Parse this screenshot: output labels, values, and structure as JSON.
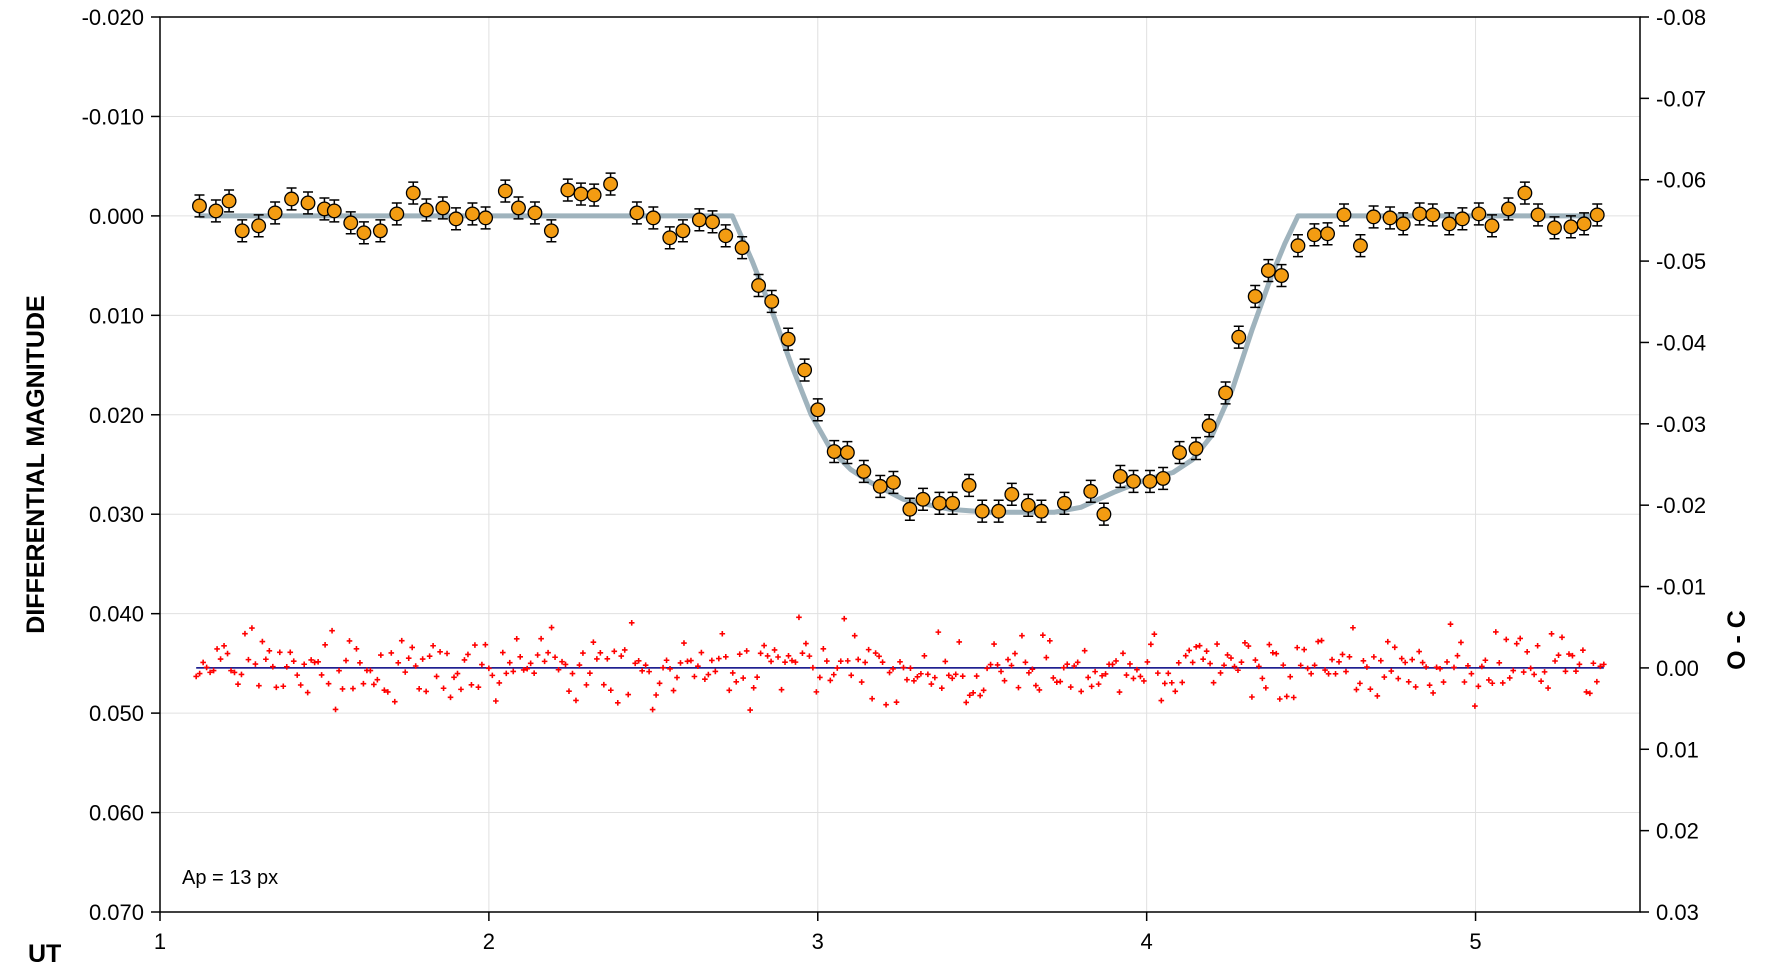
{
  "chart_data": {
    "type": "scatter",
    "xlabel": "UT",
    "ylabel": "DIFFERENTIAL MAGNITUDE",
    "y2label": "O - C",
    "annotation": "Ap = 13 px",
    "xlim": [
      1,
      5.5
    ],
    "ylim": [
      -0.02,
      0.07
    ],
    "y_inverted": true,
    "y2lim": [
      -0.08,
      0.03
    ],
    "y2_inverted": true,
    "grid": true,
    "x_ticks": [
      "1",
      "2",
      "3",
      "4",
      "5"
    ],
    "y_ticks": [
      "-0.020",
      "-0.010",
      "0.000",
      "0.010",
      "0.020",
      "0.030",
      "0.040",
      "0.050",
      "0.060",
      "0.070"
    ],
    "y2_ticks": [
      "-0.08",
      "-0.07",
      "-0.06",
      "-0.05",
      "-0.04",
      "-0.03",
      "-0.02",
      "-0.01",
      "0.00",
      "0.01",
      "0.02",
      "0.03"
    ],
    "colors": {
      "data": "#f39c12",
      "model": "#9fb3bd",
      "residuals": "#ff0000",
      "baseline": "#000080",
      "grid": "#e0e0e0"
    },
    "series": [
      {
        "kind": "points-with-error-bars",
        "marker": "circle",
        "error": 0.0011,
        "x": [
          1.12,
          1.17,
          1.21,
          1.25,
          1.3,
          1.35,
          1.4,
          1.45,
          1.5,
          1.53,
          1.58,
          1.62,
          1.67,
          1.72,
          1.77,
          1.81,
          1.86,
          1.9,
          1.95,
          1.99,
          2.05,
          2.09,
          2.14,
          2.19,
          2.24,
          2.28,
          2.32,
          2.37,
          2.45,
          2.5,
          2.55,
          2.59,
          2.64,
          2.68,
          2.72,
          2.77,
          2.82,
          2.86,
          2.91,
          2.96,
          3.0,
          3.05,
          3.09,
          3.14,
          3.19,
          3.23,
          3.28,
          3.32,
          3.37,
          3.41,
          3.46,
          3.5,
          3.55,
          3.59,
          3.64,
          3.68,
          3.75,
          3.83,
          3.87,
          3.92,
          3.96,
          4.01,
          4.05,
          4.1,
          4.15,
          4.19,
          4.24,
          4.28,
          4.33,
          4.37,
          4.41,
          4.46,
          4.51,
          4.55,
          4.6,
          4.65,
          4.69,
          4.74,
          4.78,
          4.83,
          4.87,
          4.92,
          4.96,
          5.01,
          5.05,
          5.1,
          5.15,
          5.19,
          5.24,
          5.29,
          5.33,
          5.37
        ],
        "y": [
          -0.001,
          -0.0005,
          -0.0015,
          0.0015,
          0.001,
          -0.0003,
          -0.0017,
          -0.0013,
          -0.0007,
          -0.0005,
          0.0007,
          0.0017,
          0.0015,
          -0.0002,
          -0.0023,
          -0.0006,
          -0.0008,
          0.0003,
          -0.0002,
          0.0002,
          -0.0025,
          -0.0008,
          -0.0003,
          0.0015,
          -0.0026,
          -0.0022,
          -0.0021,
          -0.0032,
          -0.0003,
          0.0002,
          0.0022,
          0.0015,
          0.0004,
          0.0006,
          0.002,
          0.0032,
          0.007,
          0.0086,
          0.0124,
          0.0155,
          0.0195,
          0.0237,
          0.0238,
          0.0257,
          0.0272,
          0.0268,
          0.0295,
          0.0285,
          0.0289,
          0.0289,
          0.0271,
          0.0297,
          0.0297,
          0.028,
          0.0291,
          0.0297,
          0.0289,
          0.0277,
          0.03,
          0.0262,
          0.0267,
          0.0267,
          0.0264,
          0.0238,
          0.0234,
          0.0211,
          0.0178,
          0.0122,
          0.0081,
          0.0055,
          0.006,
          0.003,
          0.0019,
          0.0018,
          -0.0001,
          0.003,
          0.0001,
          0.0002,
          0.0008,
          -0.0002,
          -0.0001,
          0.0008,
          0.0003,
          -0.0002,
          0.001,
          -0.0007,
          -0.0023,
          -0.0001,
          0.0012,
          0.0011,
          0.0008,
          -0.0001
        ]
      },
      {
        "kind": "model-line",
        "x": [
          1.12,
          2.74,
          2.8,
          2.86,
          2.92,
          2.98,
          3.04,
          3.1,
          3.16,
          3.26,
          3.4,
          3.52,
          3.62,
          3.72,
          3.8,
          3.9,
          4.0,
          4.08,
          4.14,
          4.2,
          4.26,
          4.32,
          4.38,
          4.42,
          4.46,
          5.37
        ],
        "y": [
          0,
          0,
          0.0045,
          0.0095,
          0.015,
          0.02,
          0.0235,
          0.0255,
          0.0268,
          0.0285,
          0.0295,
          0.0298,
          0.0298,
          0.0298,
          0.0293,
          0.0278,
          0.0265,
          0.0258,
          0.0245,
          0.022,
          0.0175,
          0.0115,
          0.006,
          0.0028,
          0,
          0
        ]
      },
      {
        "kind": "residuals",
        "axis": "y2",
        "marker": "plus",
        "n": 405,
        "x_start": 1.11,
        "x_end": 5.39,
        "sigma": 0.0022
      }
    ]
  }
}
